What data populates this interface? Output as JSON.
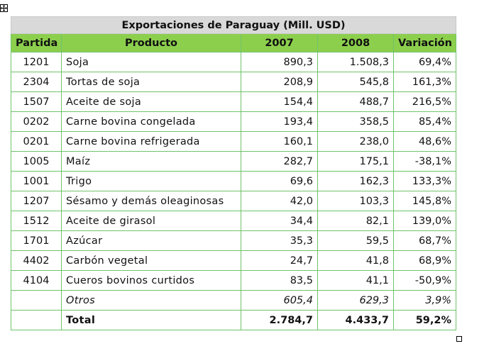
{
  "table": {
    "title": "Exportaciones de Paraguay (Mill. USD)",
    "headers": [
      "Partida",
      "Producto",
      "2007",
      "2008",
      "Variación"
    ],
    "rows": [
      {
        "code": "1201",
        "name": "Soja",
        "y2007": "890,3",
        "y2008": "1.508,3",
        "change": "69,4%"
      },
      {
        "code": "2304",
        "name": "Tortas de soja",
        "y2007": "208,9",
        "y2008": "545,8",
        "change": "161,3%"
      },
      {
        "code": "1507",
        "name": "Aceite de soja",
        "y2007": "154,4",
        "y2008": "488,7",
        "change": "216,5%"
      },
      {
        "code": "0202",
        "name": "Carne bovina congelada",
        "y2007": "193,4",
        "y2008": "358,5",
        "change": "85,4%"
      },
      {
        "code": "0201",
        "name": "Carne bovina refrigerada",
        "y2007": "160,1",
        "y2008": "238,0",
        "change": "48,6%"
      },
      {
        "code": "1005",
        "name": "Maíz",
        "y2007": "282,7",
        "y2008": "175,1",
        "change": "-38,1%"
      },
      {
        "code": "1001",
        "name": "Trigo",
        "y2007": "69,6",
        "y2008": "162,3",
        "change": "133,3%"
      },
      {
        "code": "1207",
        "name": "Sésamo y demás oleaginosas",
        "y2007": "42,0",
        "y2008": "103,3",
        "change": "145,8%"
      },
      {
        "code": "1512",
        "name": "Aceite de girasol",
        "y2007": "34,4",
        "y2008": "82,1",
        "change": "139,0%"
      },
      {
        "code": "1701",
        "name": "Azúcar",
        "y2007": "35,3",
        "y2008": "59,5",
        "change": "68,7%"
      },
      {
        "code": "4402",
        "name": "Carbón vegetal",
        "y2007": "24,7",
        "y2008": "41,8",
        "change": "68,9%"
      },
      {
        "code": "4104",
        "name": "Cueros bovinos curtidos",
        "y2007": "83,5",
        "y2008": "41,1",
        "change": "-50,9%"
      },
      {
        "code": "",
        "name": "Otros",
        "y2007": "605,4",
        "y2008": "629,3",
        "change": "3,9%"
      },
      {
        "code": "",
        "name": "Total",
        "y2007": "2.784,7",
        "y2008": "4.433,7",
        "change": "59,2%"
      }
    ]
  },
  "icons": {
    "move_handle": "table-move-handle-icon",
    "resize_handle": "table-resize-handle-icon"
  },
  "colors": {
    "header_green": "#8ccf4d",
    "title_gray": "#d9d9d9",
    "border_green": "#6fc36a"
  }
}
